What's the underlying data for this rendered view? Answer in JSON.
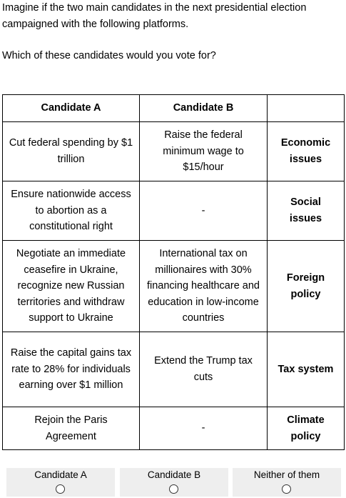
{
  "intro": {
    "line1": "Imagine if the two main candidates in the next presidential election campaigned with the following platforms.",
    "question": "Which of these candidates would you vote for?"
  },
  "table": {
    "headers": [
      "Candidate A",
      "Candidate B",
      ""
    ],
    "rows": [
      {
        "a": "Cut federal spending by $1 trillion",
        "b": "Raise the federal minimum wage to $15/hour",
        "category": "Economic issues"
      },
      {
        "a": "Ensure nationwide access to abortion as a constitutional right",
        "b": "-",
        "category": "Social issues"
      },
      {
        "a": "Negotiate an immediate ceasefire in Ukraine, recognize new Russian territories and withdraw support to Ukraine",
        "b": "International tax on millionaires with 30% financing healthcare and education in low-income countries",
        "category": "Foreign policy"
      },
      {
        "a": "Raise the capital gains tax rate to 28% for individuals earning over $1 million",
        "b": "Extend the Trump tax cuts",
        "category": "Tax system"
      },
      {
        "a": "Rejoin the Paris Agreement",
        "b": "-",
        "category": "Climate policy"
      }
    ]
  },
  "choices": [
    {
      "label": "Candidate A"
    },
    {
      "label": "Candidate B"
    },
    {
      "label": "Neither of them"
    }
  ],
  "colors": {
    "choice_background": "#eeeeee",
    "border": "#000000"
  }
}
